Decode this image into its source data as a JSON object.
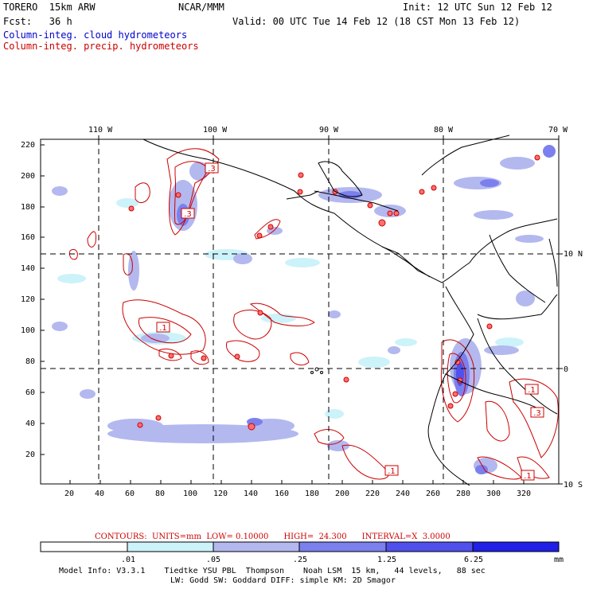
{
  "header": {
    "model": "TORERO  15km ARW",
    "org": "NCAR/MMM",
    "init": "Init: 12 UTC Sun 12 Feb 12",
    "fcst": "Fcst:   36 h",
    "valid": "Valid: 00 UTC Tue 14 Feb 12 (18 CST Mon 13 Feb 12)",
    "legend_cloud": "Column-integ. cloud hydrometeors",
    "legend_precip": "Column-integ. precip. hydrometeors"
  },
  "top_longitudes": [
    "110 W",
    "100 W",
    "90 W",
    "80 W",
    "70 W"
  ],
  "right_latitudes": [
    "10 N",
    "0",
    "10 S"
  ],
  "left_ticks": [
    "220",
    "200",
    "180",
    "160",
    "140",
    "120",
    "100",
    "80",
    "60",
    "40",
    "20"
  ],
  "bottom_ticks": [
    "20",
    "40",
    "60",
    "80",
    "100",
    "120",
    "140",
    "160",
    "180",
    "200",
    "220",
    "240",
    "260",
    "280",
    "300",
    "320"
  ],
  "contour_labels": [
    ".3",
    ".3",
    ".1",
    ".1",
    ".3",
    ".1",
    ".1"
  ],
  "contour_info": "CONTOURS:  UNITS=mm  LOW= 0.10000      HIGH=  24.300      INTERVAL=X  3.0000",
  "colorbar": {
    "ticks": [
      ".01",
      ".05",
      ".25",
      "1.25",
      "6.25"
    ],
    "unit": "mm",
    "colors": [
      "#ffffff",
      "#ccf2fa",
      "#b3b8ef",
      "#7b80ee",
      "#5050ec",
      "#2020e8"
    ]
  },
  "footer": {
    "line1": "Model Info: V3.3.1    Tiedtke YSU PBL  Thompson    Noah LSM  15 km,   44 levels,   88 sec",
    "line2": "LW: Godd SW: Goddard DIFF: simple KM: 2D Smagor"
  }
}
